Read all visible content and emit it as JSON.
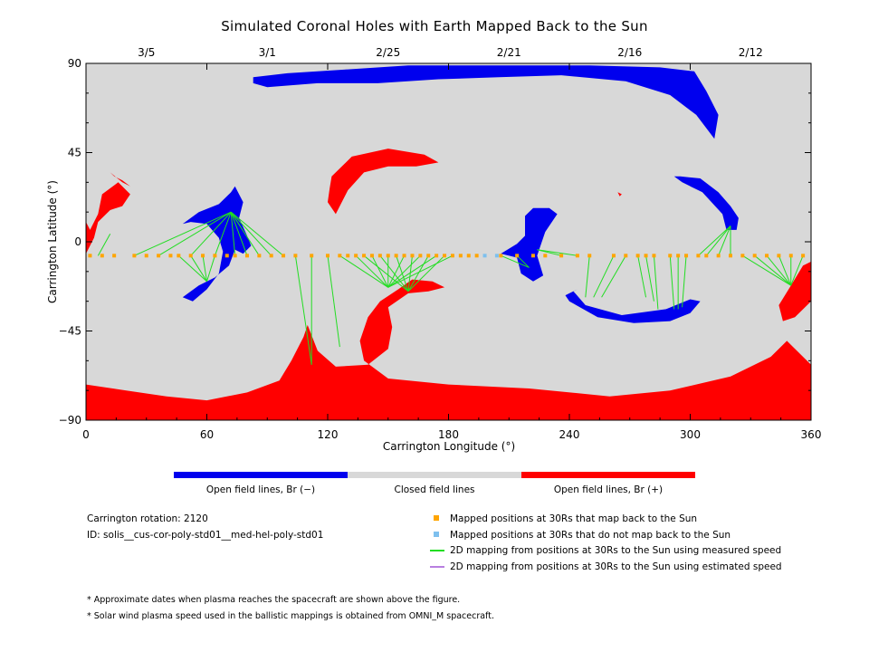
{
  "chart_data": {
    "type": "heatmap",
    "title": "Simulated Coronal Holes with Earth Mapped Back to the Sun",
    "xlabel": "Carrington Longitude (°)",
    "ylabel": "Carrington Latitude (°)",
    "xlim": [
      0,
      360
    ],
    "ylim": [
      -90,
      90
    ],
    "xticks": [
      0,
      60,
      120,
      180,
      240,
      300,
      360
    ],
    "yticks": [
      -90,
      -45,
      0,
      45,
      90
    ],
    "top_axis_dates": [
      {
        "label": "3/5",
        "lon": 30
      },
      {
        "label": "3/1",
        "lon": 90
      },
      {
        "label": "2/25",
        "lon": 150
      },
      {
        "label": "2/21",
        "lon": 210
      },
      {
        "label": "2/16",
        "lon": 270
      },
      {
        "label": "2/12",
        "lon": 330
      }
    ],
    "colors": {
      "negative": "#0000ee",
      "closed": "#d8d8d8",
      "positive": "#ff0000",
      "mapped": "#ffa500",
      "unmapped": "#7ec0ee",
      "measured": "#22dd22",
      "estimated": "#b87fe0"
    },
    "colorbar": {
      "labels": [
        "Open field lines, Br (−)",
        "Closed field lines",
        "Open field lines, Br (+)"
      ]
    },
    "mapped_positions": {
      "lat": -7,
      "lons": [
        2,
        8,
        14,
        24,
        30,
        36,
        42,
        46,
        52,
        58,
        64,
        70,
        74,
        80,
        86,
        92,
        98,
        104,
        112,
        120,
        126,
        130,
        134,
        138,
        142,
        146,
        150,
        154,
        158,
        162,
        166,
        170,
        174,
        178,
        182,
        186,
        190,
        194,
        206,
        214,
        222,
        228,
        236,
        244,
        250,
        262,
        268,
        274,
        278,
        282,
        290,
        294,
        298,
        304,
        308,
        314,
        320,
        326,
        332,
        338,
        344,
        350,
        356
      ],
      "unmapped_lons": [
        198,
        204
      ]
    },
    "mapping_lines": [
      {
        "from": [
          6,
          -7
        ],
        "to": [
          12,
          4
        ]
      },
      {
        "from": [
          24,
          -7
        ],
        "to": [
          72,
          15
        ]
      },
      {
        "from": [
          36,
          -7
        ],
        "to": [
          72,
          15
        ]
      },
      {
        "from": [
          52,
          -7
        ],
        "to": [
          72,
          15
        ]
      },
      {
        "from": [
          64,
          -7
        ],
        "to": [
          72,
          15
        ]
      },
      {
        "from": [
          74,
          -7
        ],
        "to": [
          72,
          15
        ]
      },
      {
        "from": [
          80,
          -7
        ],
        "to": [
          72,
          15
        ]
      },
      {
        "from": [
          86,
          -7
        ],
        "to": [
          72,
          15
        ]
      },
      {
        "from": [
          92,
          -7
        ],
        "to": [
          72,
          15
        ]
      },
      {
        "from": [
          98,
          -7
        ],
        "to": [
          72,
          15
        ]
      },
      {
        "from": [
          46,
          -7
        ],
        "to": [
          60,
          -20
        ]
      },
      {
        "from": [
          52,
          -7
        ],
        "to": [
          60,
          -20
        ]
      },
      {
        "from": [
          58,
          -7
        ],
        "to": [
          60,
          -20
        ]
      },
      {
        "from": [
          64,
          -7
        ],
        "to": [
          60,
          -20
        ]
      },
      {
        "from": [
          104,
          -7
        ],
        "to": [
          112,
          -62
        ]
      },
      {
        "from": [
          112,
          -7
        ],
        "to": [
          112,
          -62
        ]
      },
      {
        "from": [
          120,
          -7
        ],
        "to": [
          126,
          -53
        ]
      },
      {
        "from": [
          126,
          -7
        ],
        "to": [
          150,
          -23
        ]
      },
      {
        "from": [
          134,
          -7
        ],
        "to": [
          150,
          -23
        ]
      },
      {
        "from": [
          142,
          -7
        ],
        "to": [
          150,
          -23
        ]
      },
      {
        "from": [
          150,
          -7
        ],
        "to": [
          150,
          -23
        ]
      },
      {
        "from": [
          158,
          -7
        ],
        "to": [
          150,
          -23
        ]
      },
      {
        "from": [
          166,
          -7
        ],
        "to": [
          150,
          -23
        ]
      },
      {
        "from": [
          174,
          -7
        ],
        "to": [
          150,
          -23
        ]
      },
      {
        "from": [
          182,
          -7
        ],
        "to": [
          150,
          -23
        ]
      },
      {
        "from": [
          138,
          -7
        ],
        "to": [
          160,
          -25
        ]
      },
      {
        "from": [
          146,
          -7
        ],
        "to": [
          160,
          -25
        ]
      },
      {
        "from": [
          154,
          -7
        ],
        "to": [
          160,
          -25
        ]
      },
      {
        "from": [
          162,
          -7
        ],
        "to": [
          160,
          -25
        ]
      },
      {
        "from": [
          170,
          -7
        ],
        "to": [
          160,
          -25
        ]
      },
      {
        "from": [
          178,
          -7
        ],
        "to": [
          160,
          -25
        ]
      },
      {
        "from": [
          206,
          -7
        ],
        "to": [
          220,
          -13
        ]
      },
      {
        "from": [
          214,
          -7
        ],
        "to": [
          220,
          -13
        ]
      },
      {
        "from": [
          236,
          -7
        ],
        "to": [
          224,
          -4
        ]
      },
      {
        "from": [
          244,
          -7
        ],
        "to": [
          224,
          -4
        ]
      },
      {
        "from": [
          250,
          -7
        ],
        "to": [
          248,
          -28
        ]
      },
      {
        "from": [
          262,
          -7
        ],
        "to": [
          252,
          -28
        ]
      },
      {
        "from": [
          268,
          -7
        ],
        "to": [
          256,
          -28
        ]
      },
      {
        "from": [
          274,
          -7
        ],
        "to": [
          278,
          -28
        ]
      },
      {
        "from": [
          278,
          -7
        ],
        "to": [
          282,
          -30
        ]
      },
      {
        "from": [
          282,
          -7
        ],
        "to": [
          284,
          -34
        ]
      },
      {
        "from": [
          290,
          -7
        ],
        "to": [
          292,
          -34
        ]
      },
      {
        "from": [
          294,
          -7
        ],
        "to": [
          294,
          -34
        ]
      },
      {
        "from": [
          298,
          -7
        ],
        "to": [
          296,
          -33
        ]
      },
      {
        "from": [
          304,
          -7
        ],
        "to": [
          320,
          8
        ]
      },
      {
        "from": [
          308,
          -7
        ],
        "to": [
          320,
          8
        ]
      },
      {
        "from": [
          314,
          -7
        ],
        "to": [
          320,
          8
        ]
      },
      {
        "from": [
          320,
          -7
        ],
        "to": [
          320,
          8
        ]
      },
      {
        "from": [
          326,
          -7
        ],
        "to": [
          350,
          -22
        ]
      },
      {
        "from": [
          332,
          -7
        ],
        "to": [
          350,
          -22
        ]
      },
      {
        "from": [
          338,
          -7
        ],
        "to": [
          350,
          -22
        ]
      },
      {
        "from": [
          344,
          -7
        ],
        "to": [
          350,
          -22
        ]
      },
      {
        "from": [
          350,
          -7
        ],
        "to": [
          350,
          -22
        ]
      },
      {
        "from": [
          356,
          -7
        ],
        "to": [
          350,
          -22
        ]
      }
    ],
    "regions": [
      {
        "polarity": "negative",
        "points": [
          [
            83,
            83
          ],
          [
            100,
            85
          ],
          [
            130,
            87
          ],
          [
            160,
            89
          ],
          [
            190,
            89
          ],
          [
            220,
            89
          ],
          [
            250,
            89
          ],
          [
            285,
            88
          ],
          [
            302,
            86
          ],
          [
            308,
            76
          ],
          [
            314,
            64
          ],
          [
            312,
            52
          ],
          [
            303,
            64
          ],
          [
            290,
            74
          ],
          [
            268,
            81
          ],
          [
            236,
            84
          ],
          [
            205,
            83
          ],
          [
            175,
            82
          ],
          [
            145,
            80
          ],
          [
            115,
            80
          ],
          [
            90,
            78
          ],
          [
            83,
            80
          ]
        ]
      },
      {
        "polarity": "negative",
        "points": [
          [
            206,
            -6
          ],
          [
            214,
            -8
          ],
          [
            216,
            -16
          ],
          [
            222,
            -20
          ],
          [
            227,
            -17
          ],
          [
            224,
            -7
          ],
          [
            228,
            5
          ],
          [
            234,
            14
          ],
          [
            230,
            17
          ],
          [
            222,
            17
          ],
          [
            218,
            13
          ],
          [
            218,
            3
          ],
          [
            214,
            -1
          ]
        ]
      },
      {
        "polarity": "negative",
        "points": [
          [
            240,
            -30
          ],
          [
            254,
            -38
          ],
          [
            272,
            -41
          ],
          [
            290,
            -40
          ],
          [
            300,
            -36
          ],
          [
            305,
            -30
          ],
          [
            300,
            -29
          ],
          [
            288,
            -34
          ],
          [
            266,
            -37
          ],
          [
            248,
            -32
          ],
          [
            242,
            -25
          ],
          [
            244,
            -24
          ],
          [
            238,
            -27
          ]
        ]
      },
      {
        "polarity": "negative",
        "points": [
          [
            295,
            33
          ],
          [
            305,
            32
          ],
          [
            314,
            25
          ],
          [
            320,
            18
          ],
          [
            324,
            12
          ],
          [
            323,
            6
          ],
          [
            318,
            6
          ],
          [
            316,
            14
          ],
          [
            306,
            25
          ],
          [
            296,
            30
          ],
          [
            292,
            33
          ]
        ]
      },
      {
        "polarity": "negative",
        "points": [
          [
            48,
            9
          ],
          [
            56,
            15
          ],
          [
            66,
            19
          ],
          [
            72,
            25
          ],
          [
            74,
            28
          ],
          [
            78,
            20
          ],
          [
            76,
            12
          ],
          [
            80,
            3
          ],
          [
            82,
            -2
          ],
          [
            78,
            -6
          ],
          [
            74,
            -4
          ],
          [
            71,
            -12
          ],
          [
            64,
            -18
          ],
          [
            56,
            -22
          ],
          [
            48,
            -28
          ],
          [
            53,
            -30
          ],
          [
            60,
            -24
          ],
          [
            66,
            -16
          ],
          [
            68,
            -5
          ],
          [
            66,
            2
          ],
          [
            60,
            9
          ],
          [
            52,
            10
          ]
        ]
      },
      {
        "polarity": "positive",
        "points": [
          [
            0,
            -72
          ],
          [
            20,
            -75
          ],
          [
            40,
            -78
          ],
          [
            60,
            -80
          ],
          [
            80,
            -76
          ],
          [
            96,
            -70
          ],
          [
            102,
            -60
          ],
          [
            108,
            -48
          ],
          [
            110,
            -42
          ],
          [
            115,
            -55
          ],
          [
            124,
            -63
          ],
          [
            140,
            -62
          ],
          [
            150,
            -54
          ],
          [
            152,
            -43
          ],
          [
            150,
            -33
          ],
          [
            160,
            -26
          ],
          [
            170,
            -25
          ],
          [
            178,
            -23
          ],
          [
            172,
            -20
          ],
          [
            162,
            -19
          ],
          [
            155,
            -24
          ],
          [
            146,
            -30
          ],
          [
            140,
            -38
          ],
          [
            136,
            -50
          ],
          [
            138,
            -60
          ],
          [
            150,
            -69
          ],
          [
            180,
            -72
          ],
          [
            220,
            -74
          ],
          [
            260,
            -78
          ],
          [
            290,
            -75
          ],
          [
            320,
            -68
          ],
          [
            340,
            -58
          ],
          [
            348,
            -50
          ],
          [
            356,
            -58
          ],
          [
            360,
            -62
          ],
          [
            360,
            -90
          ],
          [
            0,
            -90
          ]
        ]
      },
      {
        "polarity": "positive",
        "points": [
          [
            122,
            33
          ],
          [
            132,
            43
          ],
          [
            150,
            47
          ],
          [
            168,
            44
          ],
          [
            175,
            40
          ],
          [
            164,
            38
          ],
          [
            150,
            38
          ],
          [
            138,
            35
          ],
          [
            130,
            26
          ],
          [
            124,
            14
          ],
          [
            120,
            20
          ],
          [
            121,
            27
          ]
        ]
      },
      {
        "polarity": "positive",
        "points": [
          [
            2,
            6
          ],
          [
            6,
            14
          ],
          [
            8,
            24
          ],
          [
            16,
            30
          ],
          [
            22,
            24
          ],
          [
            18,
            18
          ],
          [
            12,
            16
          ],
          [
            6,
            10
          ],
          [
            4,
            2
          ],
          [
            0,
            -6
          ],
          [
            0,
            10
          ]
        ]
      },
      {
        "polarity": "positive",
        "points": [
          [
            12,
            35
          ],
          [
            18,
            30
          ],
          [
            22,
            28
          ],
          [
            18,
            31
          ],
          [
            14,
            33
          ]
        ]
      },
      {
        "polarity": "positive",
        "points": [
          [
            344,
            -32
          ],
          [
            350,
            -22
          ],
          [
            356,
            -12
          ],
          [
            360,
            -10
          ],
          [
            360,
            -30
          ],
          [
            352,
            -38
          ],
          [
            346,
            -40
          ]
        ]
      },
      {
        "polarity": "positive",
        "points": [
          [
            264,
            25
          ],
          [
            266,
            24
          ],
          [
            265,
            23
          ]
        ]
      }
    ]
  },
  "footer": {
    "carrington_rotation": "Carrington rotation: 2120",
    "id": "ID: solis__cus-cor-poly-std01__med-hel-poly-std01",
    "legend": [
      {
        "text": "Mapped positions at 30Rs that map back to the Sun"
      },
      {
        "text": "Mapped positions at 30Rs that do not map back to the Sun"
      },
      {
        "text": "2D mapping from positions at 30Rs to the Sun using measured speed"
      },
      {
        "text": "2D mapping from positions at 30Rs to the Sun using estimated speed"
      }
    ],
    "notes": [
      "* Approximate dates when plasma reaches the spacecraft are shown above the figure.",
      "* Solar wind plasma speed used in the ballistic mappings is obtained from OMNI_M spacecraft."
    ]
  }
}
